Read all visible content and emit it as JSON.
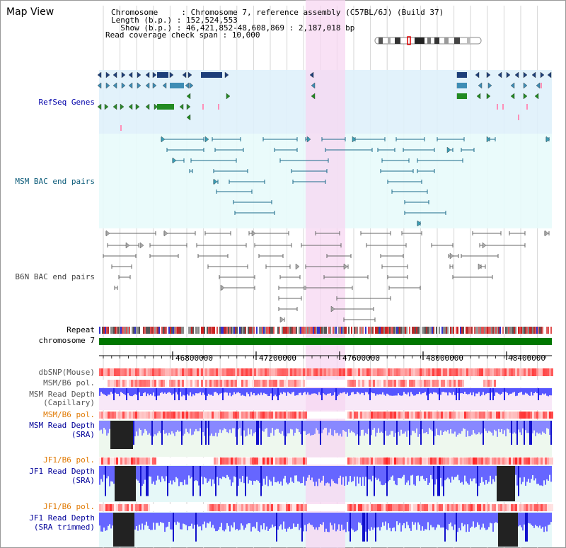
{
  "header": {
    "title": "Map View",
    "info_lines": [
      "Chromosome     : Chromosome 7, reference assembly (C57BL/6J) (Build 37)",
      "Length (b.p.) : 152,524,553",
      "  Show (b.p.) : 46,421,852-48,608,869 : 2,187,018 bp",
      "Read coverage check span : 10,000"
    ]
  },
  "tracks": {
    "refseq": "RefSeq Genes",
    "msm_bac": "MSM BAC end pairs",
    "b6n_bac": "B6N BAC end pairs",
    "repeat": "Repeat",
    "chromosome": "chromosome 7",
    "dbsnp": "dbSNP(Mouse)",
    "msm_b6_pol_1": "MSM/B6 pol.",
    "msm_depth_cap_1": "MSM Read Depth",
    "msm_depth_cap_2": "(Capillary)",
    "msm_b6_pol_2": "MSM/B6 pol.",
    "msm_depth_sra_1": "MSM Read Depth",
    "msm_depth_sra_2": "(SRA)",
    "jf1_b6_pol_1": "JF1/B6 pol.",
    "jf1_depth_sra_1": "JF1 Read Depth",
    "jf1_depth_sra_2": "(SRA)",
    "jf1_b6_pol_2": "JF1/B6 pol.",
    "jf1_depth_trim_1": "JF1 Read Depth",
    "jf1_depth_trim_2": "(SRA trimmed)"
  },
  "ruler": {
    "ticks": [
      "46800000",
      "47200000",
      "47600000",
      "48000000",
      "48400000"
    ]
  },
  "colors": {
    "refseq_bg": "#dff1fb",
    "msm_bac_bg": "#e8fbfb",
    "highlight": "#f7d7f1",
    "chromosome_bar": "#007700",
    "msm_label": "#0a5a78",
    "refseq_label": "#0000aa",
    "b6n_label": "#444444",
    "depth_label": "#000099",
    "pol_label": "#e07800"
  }
}
